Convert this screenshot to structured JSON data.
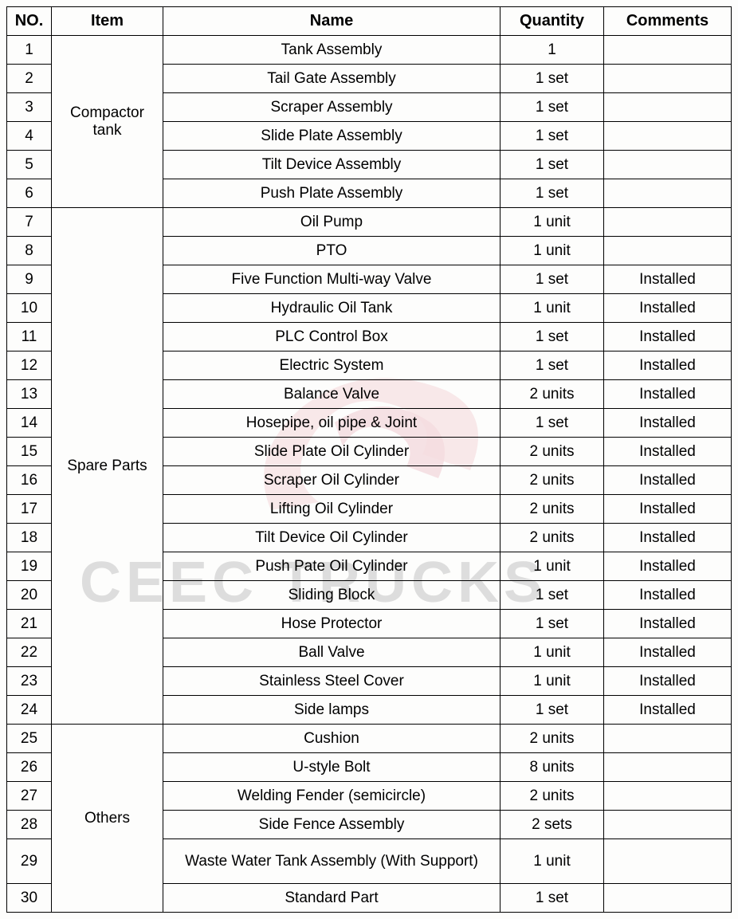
{
  "columns": {
    "no": "NO.",
    "item": "Item",
    "name": "Name",
    "quantity": "Quantity",
    "comments": "Comments"
  },
  "watermark_text": "CEEC TRUCKS",
  "watermark_logo_color": "#e8a0a8",
  "watermark_text_color": "rgba(120,120,120,0.25)",
  "border_color": "#000000",
  "font_family": "Arial, sans-serif",
  "header_fontsize": 20,
  "cell_fontsize": 19,
  "groups": [
    {
      "item": "Compactor tank",
      "rows": [
        {
          "no": "1",
          "name": "Tank Assembly",
          "qty": "1",
          "comments": ""
        },
        {
          "no": "2",
          "name": "Tail Gate Assembly",
          "qty": "1 set",
          "comments": ""
        },
        {
          "no": "3",
          "name": "Scraper Assembly",
          "qty": "1 set",
          "comments": ""
        },
        {
          "no": "4",
          "name": "Slide Plate Assembly",
          "qty": "1 set",
          "comments": ""
        },
        {
          "no": "5",
          "name": "Tilt Device Assembly",
          "qty": "1 set",
          "comments": ""
        },
        {
          "no": "6",
          "name": "Push Plate Assembly",
          "qty": "1 set",
          "comments": ""
        }
      ]
    },
    {
      "item": "Spare Parts",
      "rows": [
        {
          "no": "7",
          "name": "Oil Pump",
          "qty": "1 unit",
          "comments": ""
        },
        {
          "no": "8",
          "name": "PTO",
          "qty": "1 unit",
          "comments": ""
        },
        {
          "no": "9",
          "name": "Five Function Multi-way Valve",
          "qty": "1 set",
          "comments": "Installed"
        },
        {
          "no": "10",
          "name": "Hydraulic Oil Tank",
          "qty": "1 unit",
          "comments": "Installed"
        },
        {
          "no": "11",
          "name": "PLC Control Box",
          "qty": "1 set",
          "comments": "Installed"
        },
        {
          "no": "12",
          "name": "Electric System",
          "qty": "1 set",
          "comments": "Installed"
        },
        {
          "no": "13",
          "name": "Balance Valve",
          "qty": "2 units",
          "comments": "Installed"
        },
        {
          "no": "14",
          "name": "Hosepipe, oil pipe & Joint",
          "qty": "1 set",
          "comments": "Installed"
        },
        {
          "no": "15",
          "name": "Slide Plate Oil Cylinder",
          "qty": "2 units",
          "comments": "Installed"
        },
        {
          "no": "16",
          "name": "Scraper Oil Cylinder",
          "qty": "2 units",
          "comments": "Installed"
        },
        {
          "no": "17",
          "name": "Lifting Oil Cylinder",
          "qty": "2 units",
          "comments": "Installed"
        },
        {
          "no": "18",
          "name": "Tilt Device Oil Cylinder",
          "qty": "2 units",
          "comments": "Installed"
        },
        {
          "no": "19",
          "name": "Push Pate Oil Cylinder",
          "qty": "1 unit",
          "comments": "Installed"
        },
        {
          "no": "20",
          "name": "Sliding Block",
          "qty": "1 set",
          "comments": "Installed"
        },
        {
          "no": "21",
          "name": "Hose Protector",
          "qty": "1 set",
          "comments": "Installed"
        },
        {
          "no": "22",
          "name": "Ball Valve",
          "qty": "1 unit",
          "comments": "Installed"
        },
        {
          "no": "23",
          "name": "Stainless Steel Cover",
          "qty": "1 unit",
          "comments": "Installed"
        },
        {
          "no": "24",
          "name": "Side lamps",
          "qty": "1 set",
          "comments": "Installed"
        }
      ]
    },
    {
      "item": "Others",
      "rows": [
        {
          "no": "25",
          "name": "Cushion",
          "qty": "2 units",
          "comments": ""
        },
        {
          "no": "26",
          "name": "U-style Bolt",
          "qty": "8 units",
          "comments": ""
        },
        {
          "no": "27",
          "name": "Welding Fender (semicircle)",
          "qty": "2 units",
          "comments": ""
        },
        {
          "no": "28",
          "name": "Side Fence Assembly",
          "qty": "2 sets",
          "comments": ""
        },
        {
          "no": "29",
          "name": "Waste Water Tank Assembly (With Support)",
          "qty": "1 unit",
          "comments": "",
          "tall": true
        },
        {
          "no": "30",
          "name": "Standard Part",
          "qty": "1 set",
          "comments": ""
        }
      ]
    }
  ]
}
